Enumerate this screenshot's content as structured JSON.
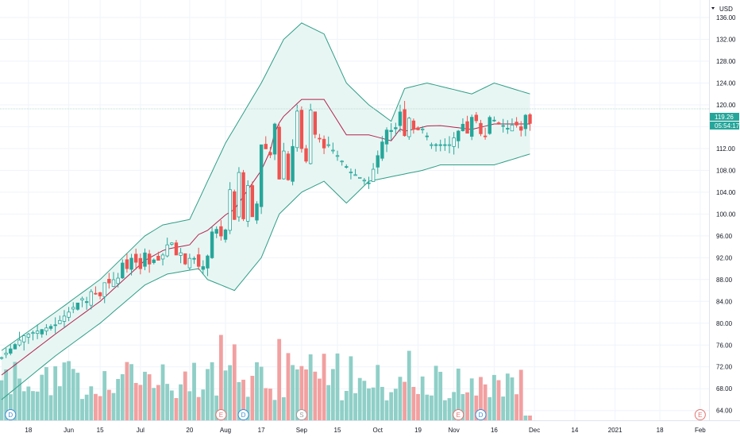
{
  "chart_data": {
    "type": "candlestick",
    "currency": "USD",
    "price_axis_ticks": [
      "136.00",
      "132.00",
      "128.00",
      "124.00",
      "120.00",
      "116.00",
      "112.00",
      "108.00",
      "104.00",
      "100.00",
      "96.00",
      "92.00",
      "88.00",
      "84.00",
      "80.00",
      "76.00",
      "72.00",
      "68.00",
      "64.00"
    ],
    "price_axis_values": [
      136,
      132,
      128,
      124,
      120,
      116,
      112,
      108,
      104,
      100,
      96,
      92,
      88,
      84,
      80,
      76,
      72,
      68,
      64
    ],
    "ylim": [
      62.5,
      139.5
    ],
    "x_ticks": [
      "18",
      "Jun",
      "15",
      "Jul",
      "20",
      "Aug",
      "17",
      "Sep",
      "15",
      "Oct",
      "19",
      "Nov",
      "16",
      "Dec",
      "14",
      "2021",
      "18",
      "Feb"
    ],
    "last_price_label": "119.26",
    "countdown_label": "05:54:17",
    "last_price": 119.26,
    "event_markers": [
      {
        "label": "D",
        "kind": "dividend"
      },
      {
        "label": "E",
        "kind": "earnings"
      },
      {
        "label": "D",
        "kind": "dividend"
      },
      {
        "label": "S",
        "kind": "split"
      },
      {
        "label": "E",
        "kind": "earnings"
      },
      {
        "label": "D",
        "kind": "dividend"
      },
      {
        "label": "E",
        "kind": "earnings-upcoming"
      }
    ],
    "anchors": [
      [
        0,
        74,
        78,
        73
      ],
      [
        5,
        78,
        80,
        76
      ],
      [
        12,
        80,
        81,
        79
      ],
      [
        22,
        88,
        87,
        80
      ],
      [
        32,
        96,
        92,
        89
      ],
      [
        37,
        98,
        94,
        91
      ],
      [
        42,
        93,
        91,
        88
      ],
      [
        44,
        96,
        91,
        86
      ],
      [
        48,
        110,
        96,
        88
      ],
      [
        58,
        121,
        108,
        96
      ],
      [
        63,
        129,
        111,
        96
      ],
      [
        67,
        138,
        117,
        97
      ],
      [
        72,
        114,
        115,
        102
      ],
      [
        78,
        108,
        118,
        102
      ],
      [
        82,
        106,
        116,
        101
      ],
      [
        86,
        116,
        116,
        105
      ],
      [
        91,
        121,
        118,
        106
      ],
      [
        96,
        113,
        117,
        108
      ],
      [
        100,
        113,
        117,
        107
      ],
      [
        104,
        118,
        117,
        106
      ],
      [
        107,
        119,
        117,
        107
      ],
      [
        113,
        116,
        117,
        108
      ],
      [
        118,
        119,
        117,
        109
      ]
    ],
    "bollinger_upper_anchors": [
      [
        0,
        75
      ],
      [
        12,
        82
      ],
      [
        22,
        88
      ],
      [
        32,
        96
      ],
      [
        36,
        98
      ],
      [
        42,
        99
      ],
      [
        50,
        113
      ],
      [
        58,
        124
      ],
      [
        63,
        132
      ],
      [
        67,
        135
      ],
      [
        72,
        133
      ],
      [
        77,
        124
      ],
      [
        82,
        120
      ],
      [
        87,
        117
      ],
      [
        90,
        123
      ],
      [
        95,
        124
      ],
      [
        100,
        123
      ],
      [
        105,
        122
      ],
      [
        110,
        124
      ],
      [
        118,
        122
      ]
    ],
    "bollinger_lower_anchors": [
      [
        0,
        66
      ],
      [
        12,
        74
      ],
      [
        22,
        80
      ],
      [
        32,
        87
      ],
      [
        37,
        89
      ],
      [
        44,
        90
      ],
      [
        46,
        88
      ],
      [
        52,
        86
      ],
      [
        58,
        92
      ],
      [
        62,
        100
      ],
      [
        67,
        104
      ],
      [
        72,
        106
      ],
      [
        77,
        102
      ],
      [
        82,
        106
      ],
      [
        88,
        107
      ],
      [
        94,
        108
      ],
      [
        98,
        109
      ],
      [
        104,
        109
      ],
      [
        110,
        109
      ],
      [
        118,
        111
      ]
    ],
    "colors": {
      "up": "#26a69a",
      "down": "#ef5350",
      "up_volume": "#8fcfc7",
      "down_volume": "#f2a0a0",
      "band": "#2e9e87",
      "band_fill": "#e6f5f2",
      "basis": "#b2224f",
      "grid": "#f0f3fa",
      "price_label": "#26a69a"
    }
  }
}
